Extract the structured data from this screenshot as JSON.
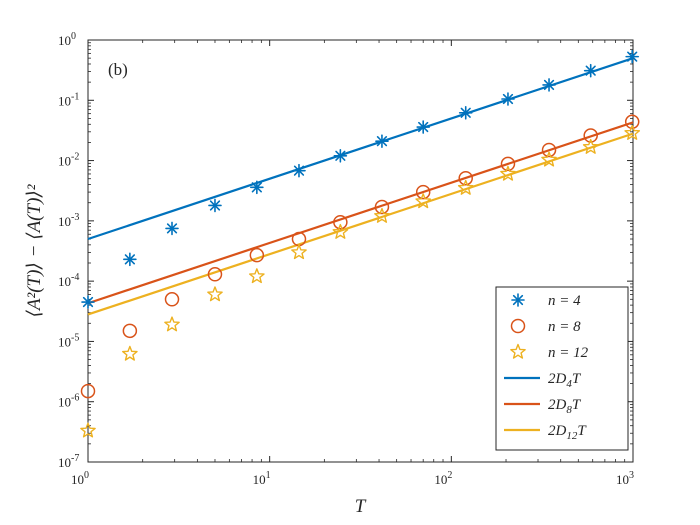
{
  "chart_data": {
    "type": "scatter",
    "panel_label": "(b)",
    "xlabel": "T",
    "ylabel": "⟨A²(T)⟩ − ⟨A(T)⟩²",
    "xscale": "log",
    "yscale": "log",
    "xlim": [
      1,
      1000
    ],
    "ylim": [
      1e-07,
      1
    ],
    "x_ticks": [
      {
        "value": 1,
        "base": "10",
        "exp": "0"
      },
      {
        "value": 10,
        "base": "10",
        "exp": "1"
      },
      {
        "value": 100,
        "base": "10",
        "exp": "2"
      },
      {
        "value": 1000,
        "base": "10",
        "exp": "3"
      }
    ],
    "y_ticks": [
      {
        "value": 1e-07,
        "base": "10",
        "exp": "-7"
      },
      {
        "value": 1e-06,
        "base": "10",
        "exp": "-6"
      },
      {
        "value": 1e-05,
        "base": "10",
        "exp": "-5"
      },
      {
        "value": 0.0001,
        "base": "10",
        "exp": "-4"
      },
      {
        "value": 0.001,
        "base": "10",
        "exp": "-3"
      },
      {
        "value": 0.01,
        "base": "10",
        "exp": "-2"
      },
      {
        "value": 0.1,
        "base": "10",
        "exp": "-1"
      },
      {
        "value": 1,
        "base": "10",
        "exp": "0"
      }
    ],
    "x": [
      1,
      1.7,
      2.9,
      5,
      8.5,
      14.5,
      24.5,
      41.5,
      70,
      120,
      205,
      345,
      585,
      990
    ],
    "series": [
      {
        "name": "n = 4",
        "marker": "asterisk",
        "color": "#0072BD",
        "values": [
          4.5e-05,
          0.00023,
          0.00075,
          0.0018,
          0.0036,
          0.0068,
          0.012,
          0.021,
          0.036,
          0.062,
          0.105,
          0.18,
          0.31,
          0.53
        ]
      },
      {
        "name": "n = 8",
        "marker": "circle",
        "color": "#D95319",
        "values": [
          1.5e-06,
          1.5e-05,
          5e-05,
          0.00013,
          0.00027,
          0.0005,
          0.00095,
          0.0017,
          0.003,
          0.0051,
          0.0088,
          0.015,
          0.026,
          0.044
        ]
      },
      {
        "name": "n = 12",
        "marker": "star",
        "color": "#EDB120",
        "values": [
          3.3e-07,
          6.2e-06,
          1.9e-05,
          6e-05,
          0.00012,
          0.0003,
          0.00065,
          0.0012,
          0.0021,
          0.0035,
          0.006,
          0.0103,
          0.0167,
          0.0285
        ]
      }
    ],
    "lines": [
      {
        "name": "2D4T",
        "label_main": "2D",
        "label_sub": "4",
        "label_tail": "T",
        "color": "#0072BD",
        "y_at_1": 0.0005,
        "y_at_1000": 0.5
      },
      {
        "name": "2D8T",
        "label_main": "2D",
        "label_sub": "8",
        "label_tail": "T",
        "color": "#D95319",
        "y_at_1": 4.3e-05,
        "y_at_1000": 0.043
      },
      {
        "name": "2D12T",
        "label_main": "2D",
        "label_sub": "12",
        "label_tail": "T",
        "color": "#EDB120",
        "y_at_1": 2.8e-05,
        "y_at_1000": 0.028
      }
    ],
    "legend_position": "bottom-right",
    "grid": false
  }
}
